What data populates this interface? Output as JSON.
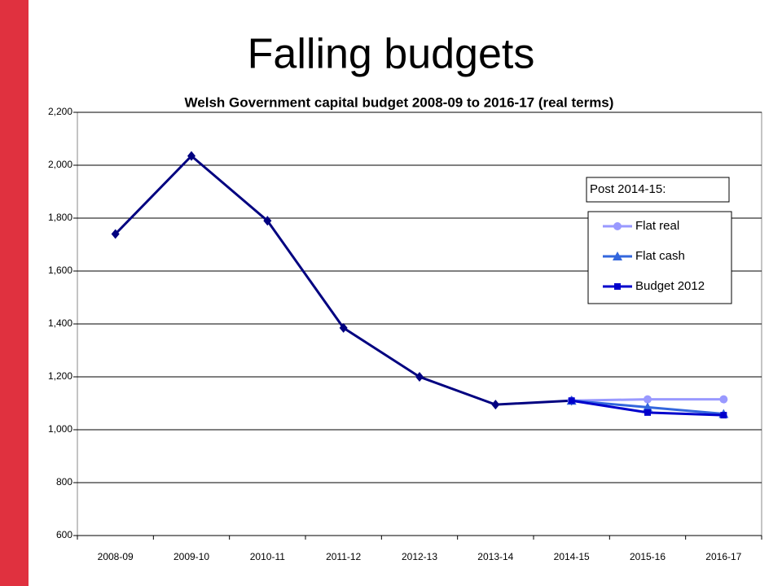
{
  "chart_data": {
    "type": "line",
    "slide_title": "Falling budgets",
    "title": "Welsh Government capital budget 2008-09 to 2016-17 (real terms)",
    "legend_title": "Post 2014-15:",
    "categories": [
      "2008-09",
      "2009-10",
      "2010-11",
      "2011-12",
      "2012-13",
      "2013-14",
      "2014-15",
      "2015-16",
      "2016-17"
    ],
    "series": [
      {
        "color": "#000080",
        "marker": "diamond",
        "values": [
          1740,
          2035,
          1790,
          1385,
          1200,
          1095,
          1110,
          null,
          null
        ]
      },
      {
        "name": "Flat real",
        "color": "#9999ff",
        "marker": "circle",
        "values": [
          null,
          null,
          null,
          null,
          null,
          null,
          1110,
          1115,
          1115
        ]
      },
      {
        "name": "Flat cash",
        "color": "#3366dd",
        "marker": "triangle",
        "values": [
          null,
          null,
          null,
          null,
          null,
          null,
          1110,
          1085,
          1060
        ]
      },
      {
        "name": "Budget 2012",
        "color": "#0000cc",
        "marker": "square",
        "values": [
          null,
          null,
          null,
          null,
          null,
          null,
          1110,
          1065,
          1055
        ]
      }
    ],
    "ylim": [
      600,
      2200
    ],
    "yticks": [
      600,
      800,
      {
        "value": 1000,
        "label": "1,000"
      },
      {
        "value": 1200,
        "label": "1,200"
      },
      {
        "value": 1400,
        "label": "1,400"
      },
      {
        "value": 1600,
        "label": "1,600"
      },
      {
        "value": 1800,
        "label": "1,800"
      },
      {
        "value": 2000,
        "label": "2,000"
      },
      {
        "value": 2200,
        "label": "2,200"
      }
    ],
    "grid": true
  }
}
